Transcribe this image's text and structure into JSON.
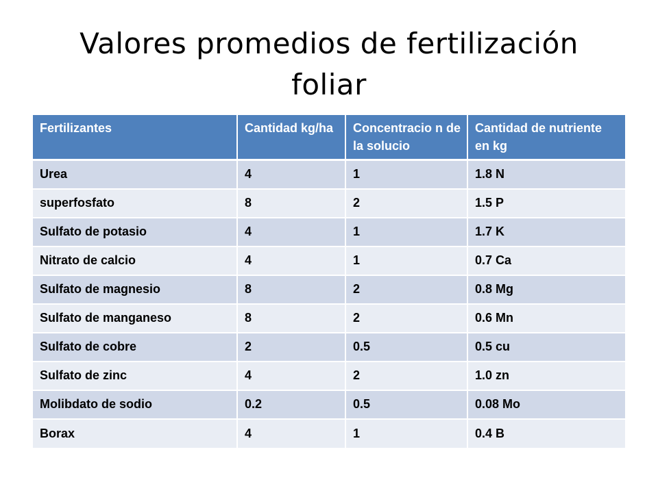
{
  "title": "Valores promedios de fertilización foliar",
  "table": {
    "headers": [
      "Fertilizantes",
      "Cantidad kg/ha",
      "Concentracio n de la solucio",
      "Cantidad de nutriente en kg"
    ],
    "rows": [
      [
        "Urea",
        "4",
        "1",
        "1.8 N"
      ],
      [
        "superfosfato",
        "8",
        "2",
        "1.5 P"
      ],
      [
        "Sulfato de potasio",
        "4",
        "1",
        "1.7 K"
      ],
      [
        "Nitrato de calcio",
        "4",
        "1",
        "0.7 Ca"
      ],
      [
        "Sulfato de magnesio",
        "8",
        "2",
        "0.8 Mg"
      ],
      [
        "Sulfato de manganeso",
        "8",
        "2",
        "0.6 Mn"
      ],
      [
        "Sulfato de cobre",
        "2",
        "0.5",
        "0.5 cu"
      ],
      [
        "Sulfato de zinc",
        "4",
        "2",
        "1.0 zn"
      ],
      [
        "Molibdato de sodio",
        "0.2",
        "0.5",
        "0.08 Mo"
      ],
      [
        "Borax",
        "4",
        "1",
        "0.4 B"
      ]
    ]
  },
  "colors": {
    "header_bg": "#4f81bd",
    "row_band_dark": "#d0d8e8",
    "row_band_light": "#e9edf4"
  }
}
